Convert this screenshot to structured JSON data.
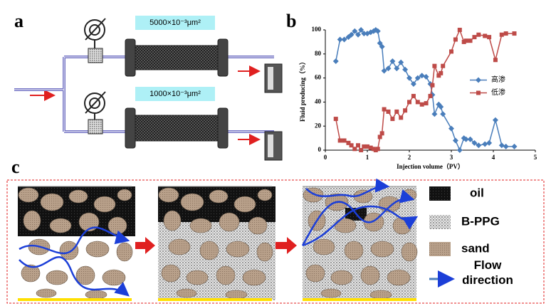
{
  "panel_a": {
    "label": "a",
    "permeability_labels": [
      "5000×10⁻³μm²",
      "1000×10⁻³μm²"
    ]
  },
  "chart_data": {
    "type": "line",
    "panel_label": "b",
    "xlabel": "Injection volume（PV）",
    "ylabel": "Fluid producing（%）",
    "x": [
      0.25,
      0.35,
      0.45,
      0.55,
      0.62,
      0.7,
      0.78,
      0.85,
      0.92,
      1.0,
      1.08,
      1.15,
      1.2,
      1.25,
      1.3,
      1.35,
      1.4,
      1.5,
      1.6,
      1.7,
      1.8,
      1.9,
      2.0,
      2.1,
      2.2,
      2.3,
      2.4,
      2.5,
      2.55,
      2.6,
      2.7,
      2.75,
      2.8,
      3.0,
      3.1,
      3.2,
      3.3,
      3.35,
      3.45,
      3.55,
      3.65,
      3.8,
      3.9,
      4.05,
      4.2,
      4.3,
      4.5
    ],
    "series": [
      {
        "name": "高渗",
        "color": "#4a7ebb",
        "marker": "diamond",
        "values": [
          74,
          92,
          92,
          94,
          96,
          99,
          96,
          100,
          97,
          97,
          98,
          99,
          100,
          99,
          89,
          86,
          66,
          68,
          74,
          68,
          73,
          67,
          60,
          55,
          60,
          62,
          61,
          55,
          46,
          30,
          38,
          36,
          30,
          18,
          8,
          0,
          10,
          9,
          9,
          6,
          4,
          5,
          6,
          25,
          4,
          3,
          3
        ]
      },
      {
        "name": "低渗",
        "color": "#be4b48",
        "marker": "square",
        "values": [
          26,
          8,
          8,
          6,
          4,
          1,
          4,
          0,
          3,
          3,
          2,
          1,
          0,
          1,
          11,
          14,
          34,
          32,
          26,
          32,
          27,
          33,
          40,
          45,
          40,
          38,
          39,
          45,
          54,
          70,
          62,
          64,
          70,
          82,
          92,
          100,
          90,
          91,
          91,
          94,
          96,
          95,
          94,
          75,
          96,
          97,
          97
        ]
      }
    ],
    "xlim": [
      0,
      5
    ],
    "xticks": [
      0,
      1,
      2,
      3,
      4,
      5
    ],
    "ylim": [
      0,
      100
    ],
    "yticks": [
      0,
      20,
      40,
      60,
      80,
      100
    ],
    "legend": "center-right",
    "grid": false
  },
  "panel_c": {
    "label": "c",
    "legend": [
      "oil",
      "B-PPG",
      "sand",
      "Flow direction"
    ]
  }
}
